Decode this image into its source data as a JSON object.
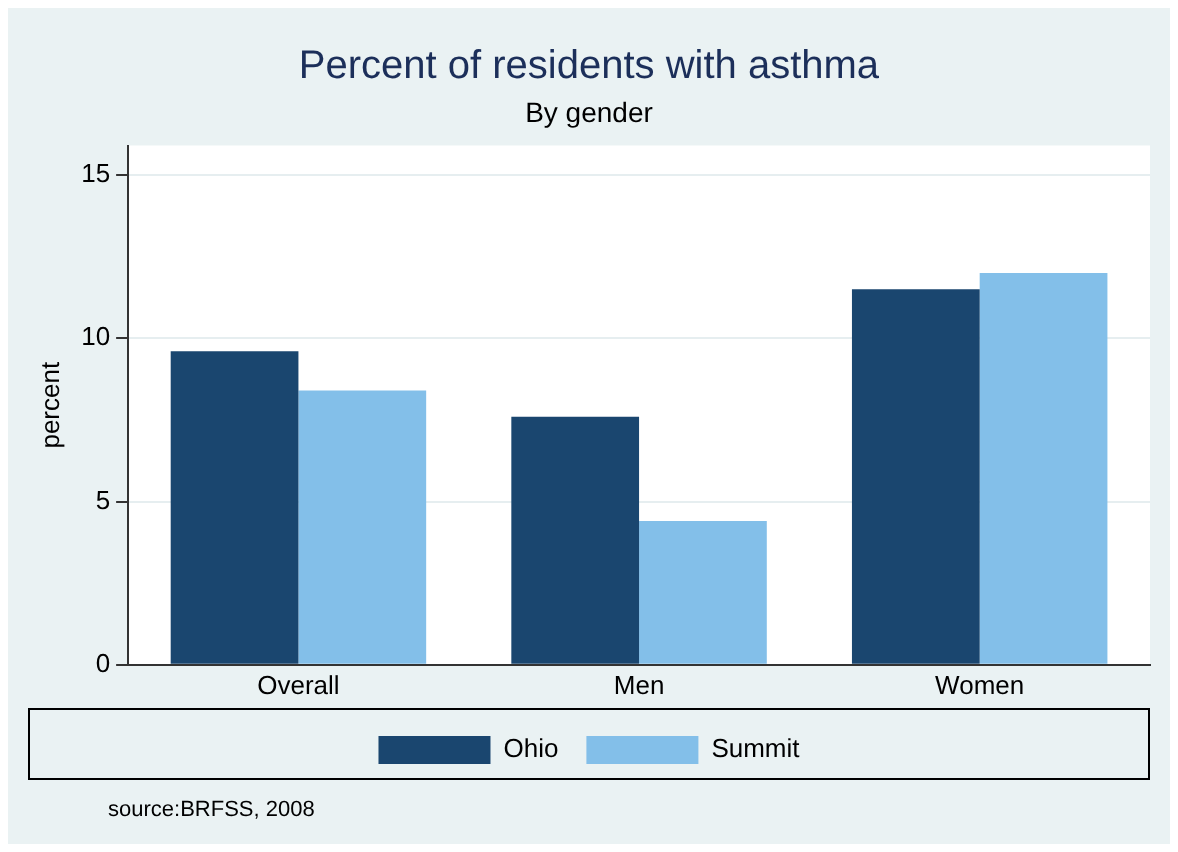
{
  "chart_data": {
    "type": "bar",
    "title": "Percent of residents with asthma",
    "subtitle": "By gender",
    "ylabel": "percent",
    "categories": [
      "Overall",
      "Men",
      "Women"
    ],
    "series": [
      {
        "name": "Ohio",
        "color": "#1a466f",
        "values": [
          9.6,
          7.6,
          11.5
        ]
      },
      {
        "name": "Summit",
        "color": "#83bfe9",
        "values": [
          8.4,
          4.4,
          12.0
        ]
      }
    ],
    "ylim": [
      0,
      15.9
    ],
    "yticks": [
      0,
      5,
      10,
      15
    ],
    "grid": "y",
    "legend": "bottom",
    "annotations": [
      "source:BRFSS, 2008"
    ]
  }
}
